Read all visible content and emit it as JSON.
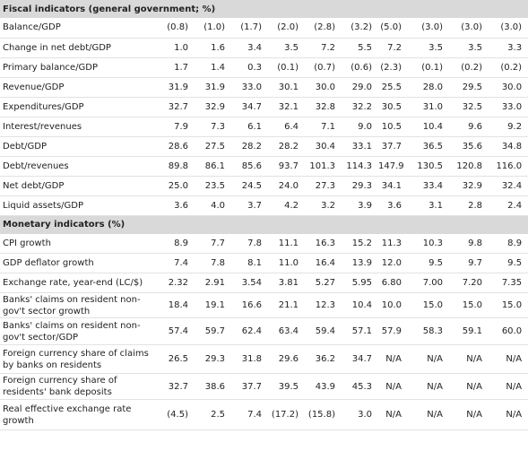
{
  "sections": [
    {
      "title": "Fiscal indicators (general government; %)",
      "rows": [
        {
          "label": "Balance/GDP",
          "values": [
            "(0.8)",
            "(1.0)",
            "(1.7)",
            "(2.0)",
            "(2.8)",
            "(3.2)",
            "(5.0)",
            "(3.0)",
            "(3.0)",
            "(3.0)"
          ]
        },
        {
          "label": "Change in net debt/GDP",
          "values": [
            "1.0",
            "1.6",
            "3.4",
            "3.5",
            "7.2",
            "5.5",
            "7.2",
            "3.5",
            "3.5",
            "3.3"
          ]
        },
        {
          "label": "Primary balance/GDP",
          "values": [
            "1.7",
            "1.4",
            "0.3",
            "(0.1)",
            "(0.7)",
            "(0.6)",
            "(2.3)",
            "(0.1)",
            "(0.2)",
            "(0.2)"
          ]
        },
        {
          "label": "Revenue/GDP",
          "values": [
            "31.9",
            "31.9",
            "33.0",
            "30.1",
            "30.0",
            "29.0",
            "25.5",
            "28.0",
            "29.5",
            "30.0"
          ]
        },
        {
          "label": "Expenditures/GDP",
          "values": [
            "32.7",
            "32.9",
            "34.7",
            "32.1",
            "32.8",
            "32.2",
            "30.5",
            "31.0",
            "32.5",
            "33.0"
          ]
        },
        {
          "label": "Interest/revenues",
          "values": [
            "7.9",
            "7.3",
            "6.1",
            "6.4",
            "7.1",
            "9.0",
            "10.5",
            "10.4",
            "9.6",
            "9.2"
          ]
        },
        {
          "label": "Debt/GDP",
          "values": [
            "28.6",
            "27.5",
            "28.2",
            "28.2",
            "30.4",
            "33.1",
            "37.7",
            "36.5",
            "35.6",
            "34.8"
          ]
        },
        {
          "label": "Debt/revenues",
          "values": [
            "89.8",
            "86.1",
            "85.6",
            "93.7",
            "101.3",
            "114.3",
            "147.9",
            "130.5",
            "120.8",
            "116.0"
          ]
        },
        {
          "label": "Net debt/GDP",
          "values": [
            "25.0",
            "23.5",
            "24.5",
            "24.0",
            "27.3",
            "29.3",
            "34.1",
            "33.4",
            "32.9",
            "32.4"
          ]
        },
        {
          "label": "Liquid assets/GDP",
          "values": [
            "3.6",
            "4.0",
            "3.7",
            "4.2",
            "3.2",
            "3.9",
            "3.6",
            "3.1",
            "2.8",
            "2.4"
          ]
        }
      ]
    },
    {
      "title": "Monetary indicators (%)",
      "rows": [
        {
          "label": "CPI growth",
          "values": [
            "8.9",
            "7.7",
            "7.8",
            "11.1",
            "16.3",
            "15.2",
            "11.3",
            "10.3",
            "9.8",
            "8.9"
          ]
        },
        {
          "label": "GDP deflator growth",
          "values": [
            "7.4",
            "7.8",
            "8.1",
            "11.0",
            "16.4",
            "13.9",
            "12.0",
            "9.5",
            "9.7",
            "9.5"
          ]
        },
        {
          "label": "Exchange rate, year-end (LC/$)",
          "values": [
            "2.32",
            "2.91",
            "3.54",
            "3.81",
            "5.27",
            "5.95",
            "6.80",
            "7.00",
            "7.20",
            "7.35"
          ]
        },
        {
          "label": "Banks' claims on resident non-gov't sector growth",
          "values": [
            "18.4",
            "19.1",
            "16.6",
            "21.1",
            "12.3",
            "10.4",
            "10.0",
            "15.0",
            "15.0",
            "15.0"
          ]
        },
        {
          "label": "Banks' claims on resident non-gov't sector/GDP",
          "values": [
            "57.4",
            "59.7",
            "62.4",
            "63.4",
            "59.4",
            "57.1",
            "57.9",
            "58.3",
            "59.1",
            "60.0"
          ]
        },
        {
          "label": "Foreign currency share of claims by banks on residents",
          "values": [
            "26.5",
            "29.3",
            "31.8",
            "29.6",
            "36.2",
            "34.7",
            "N/A",
            "N/A",
            "N/A",
            "N/A"
          ]
        },
        {
          "label": "Foreign currency share of residents' bank deposits",
          "values": [
            "32.7",
            "38.6",
            "37.7",
            "39.5",
            "43.9",
            "45.3",
            "N/A",
            "N/A",
            "N/A",
            "N/A"
          ]
        },
        {
          "label": "Real effective exchange rate growth",
          "values": [
            "(4.5)",
            "2.5",
            "7.4",
            "(17.2)",
            "(15.8)",
            "3.0",
            "N/A",
            "N/A",
            "N/A",
            "N/A"
          ]
        }
      ]
    }
  ]
}
